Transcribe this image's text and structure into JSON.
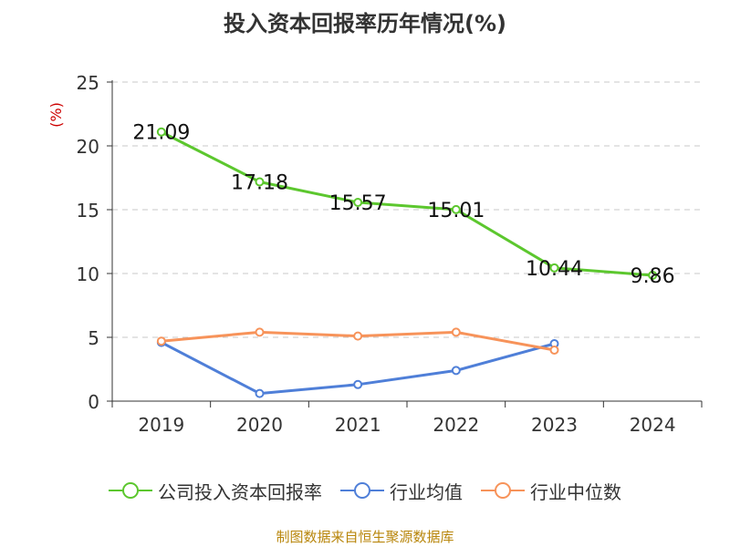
{
  "chart_data": {
    "type": "line",
    "title": "投入资本回报率历年情况(%)",
    "ylabel": "(%)",
    "categories": [
      "2019",
      "2020",
      "2021",
      "2022",
      "2023",
      "2024"
    ],
    "ylim": [
      0,
      25
    ],
    "yticks": [
      0,
      5,
      10,
      15,
      20,
      25
    ],
    "grid": true,
    "legend_position": "bottom",
    "series": [
      {
        "name": "公司投入资本回报率",
        "color": "#5cc72e",
        "values": [
          21.09,
          17.18,
          15.57,
          15.01,
          10.44,
          9.86
        ],
        "labels": [
          "21.09",
          "17.18",
          "15.57",
          "15.01",
          "10.44",
          "9.86"
        ]
      },
      {
        "name": "行业均值",
        "color": "#4f7fd8",
        "values": [
          4.6,
          0.6,
          1.3,
          2.4,
          4.5,
          null
        ]
      },
      {
        "name": "行业中位数",
        "color": "#f7935a",
        "values": [
          4.7,
          5.4,
          5.1,
          5.4,
          4.0,
          null
        ]
      }
    ]
  },
  "source": "制图数据来自恒生聚源数据库"
}
